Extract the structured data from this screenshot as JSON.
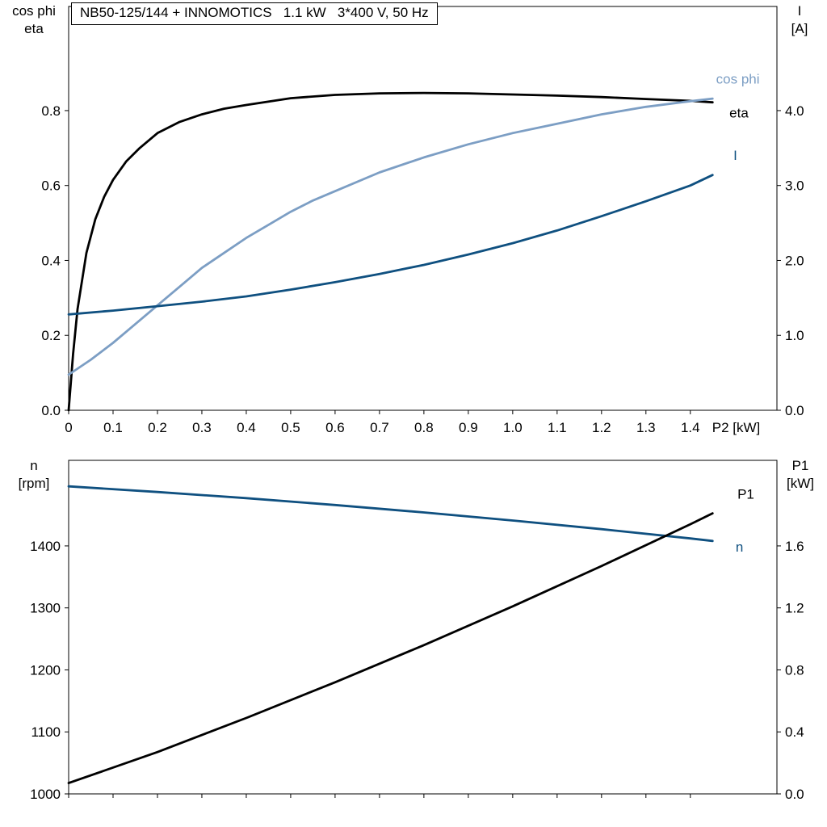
{
  "title_box": {
    "text": "NB50-125/144 + INNOMOTICS   1.1 kW   3*400 V, 50 Hz"
  },
  "chart_data": [
    {
      "type": "line",
      "id": "motor-performance-upper",
      "x": {
        "range": [
          0,
          1.595
        ],
        "ticks": [
          0,
          0.1,
          0.2,
          0.3,
          0.4,
          0.5,
          0.6,
          0.7,
          0.8,
          0.9,
          1.0,
          1.1,
          1.2,
          1.3,
          1.4
        ],
        "tick_labels": [
          "0",
          "0.1",
          "0.2",
          "0.3",
          "0.4",
          "0.5",
          "0.6",
          "0.7",
          "0.8",
          "0.9",
          "1.0",
          "1.1",
          "1.2",
          "1.3",
          "1.4"
        ],
        "axis_label": "P2 [kW]"
      },
      "y_left": {
        "title_lines": [
          "cos phi",
          "eta"
        ],
        "range": [
          0,
          1.078
        ],
        "ticks": [
          0,
          0.2,
          0.4,
          0.6,
          0.8
        ],
        "tick_labels": [
          "0.0",
          "0.2",
          "0.4",
          "0.6",
          "0.8"
        ]
      },
      "y_right": {
        "title_lines": [
          "I",
          "[A]"
        ],
        "range": [
          0,
          5.39
        ],
        "ticks": [
          0,
          1,
          2,
          3,
          4
        ],
        "tick_labels": [
          "0.0",
          "1.0",
          "2.0",
          "3.0",
          "4.0"
        ]
      },
      "legend_position": "right-inside",
      "grid": false,
      "series": [
        {
          "name": "eta",
          "label": "eta",
          "axis": "left",
          "color": "#000000",
          "label_x": 1.488,
          "label_y": 0.782,
          "x": [
            0,
            0.01,
            0.02,
            0.04,
            0.06,
            0.08,
            0.1,
            0.13,
            0.16,
            0.2,
            0.25,
            0.3,
            0.35,
            0.4,
            0.5,
            0.6,
            0.7,
            0.8,
            0.9,
            1.0,
            1.1,
            1.2,
            1.3,
            1.4,
            1.45
          ],
          "y": [
            0,
            0.15,
            0.27,
            0.42,
            0.51,
            0.57,
            0.615,
            0.665,
            0.7,
            0.74,
            0.77,
            0.79,
            0.805,
            0.815,
            0.833,
            0.842,
            0.846,
            0.847,
            0.846,
            0.843,
            0.84,
            0.836,
            0.831,
            0.826,
            0.822
          ]
        },
        {
          "name": "cos-phi",
          "label": "cos phi",
          "axis": "left",
          "color": "#7C9EC4",
          "label_x": 1.458,
          "label_y": 0.872,
          "x": [
            0,
            0.05,
            0.1,
            0.15,
            0.2,
            0.25,
            0.3,
            0.35,
            0.4,
            0.45,
            0.5,
            0.55,
            0.6,
            0.7,
            0.8,
            0.9,
            1.0,
            1.1,
            1.2,
            1.3,
            1.4,
            1.45
          ],
          "y": [
            0.095,
            0.135,
            0.18,
            0.23,
            0.28,
            0.33,
            0.38,
            0.42,
            0.46,
            0.495,
            0.53,
            0.56,
            0.585,
            0.635,
            0.675,
            0.71,
            0.74,
            0.765,
            0.79,
            0.81,
            0.825,
            0.832
          ]
        },
        {
          "name": "I",
          "label": "I",
          "axis": "right",
          "color": "#0F5080",
          "label_x": 1.497,
          "label_y": 3.34,
          "x": [
            0,
            0.1,
            0.2,
            0.3,
            0.4,
            0.5,
            0.6,
            0.7,
            0.8,
            0.9,
            1.0,
            1.1,
            1.2,
            1.3,
            1.4,
            1.45
          ],
          "y": [
            1.28,
            1.33,
            1.39,
            1.45,
            1.52,
            1.61,
            1.71,
            1.82,
            1.94,
            2.08,
            2.23,
            2.4,
            2.59,
            2.79,
            3.0,
            3.14
          ]
        }
      ]
    },
    {
      "type": "line",
      "id": "motor-performance-lower",
      "x": {
        "range": [
          0,
          1.595
        ],
        "ticks": [
          0,
          0.1,
          0.2,
          0.3,
          0.4,
          0.5,
          0.6,
          0.7,
          0.8,
          0.9,
          1.0,
          1.1,
          1.2,
          1.3,
          1.4
        ],
        "tick_labels": []
      },
      "y_left": {
        "title_lines": [
          "n",
          "[rpm]"
        ],
        "range": [
          1000,
          1538
        ],
        "ticks": [
          1000,
          1100,
          1200,
          1300,
          1400
        ],
        "tick_labels": [
          "1000",
          "1100",
          "1200",
          "1300",
          "1400"
        ]
      },
      "y_right": {
        "title_lines": [
          "P1",
          "[kW]"
        ],
        "range": [
          0,
          2.152
        ],
        "ticks": [
          0,
          0.4,
          0.8,
          1.2,
          1.6
        ],
        "tick_labels": [
          "0.0",
          "0.4",
          "0.8",
          "1.2",
          "1.6"
        ]
      },
      "legend_position": "right-inside",
      "grid": false,
      "series": [
        {
          "name": "n",
          "label": "n",
          "axis": "left",
          "color": "#0F5080",
          "label_x": 1.502,
          "label_y": 1391,
          "x": [
            0,
            0.2,
            0.4,
            0.6,
            0.8,
            1.0,
            1.2,
            1.4,
            1.45
          ],
          "y": [
            1496,
            1487,
            1477,
            1466,
            1454,
            1441,
            1427,
            1412,
            1408
          ]
        },
        {
          "name": "P1",
          "label": "P1",
          "axis": "right",
          "color": "#000000",
          "label_x": 1.506,
          "label_y": 1.905,
          "x": [
            0,
            0.2,
            0.4,
            0.6,
            0.8,
            1.0,
            1.2,
            1.4,
            1.45
          ],
          "y": [
            0.07,
            0.27,
            0.49,
            0.72,
            0.96,
            1.21,
            1.47,
            1.74,
            1.81
          ]
        }
      ]
    }
  ]
}
